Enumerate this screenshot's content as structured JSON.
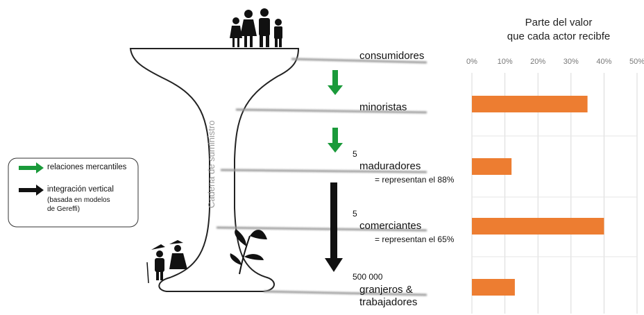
{
  "diagram": {
    "stem_label": "Cadena de suministro",
    "groups": [
      {
        "count": "5",
        "note": "= representan el 88%"
      },
      {
        "count": "5",
        "note": "= representan el 65%"
      },
      {
        "count": "500 000"
      }
    ],
    "legend": {
      "trade": "relaciones mercantiles",
      "vertical": "integración vertical",
      "vertical_note": [
        "(basada en modelos",
        "de Gereffi)"
      ]
    }
  },
  "chart_data": {
    "type": "bar",
    "orientation": "horizontal",
    "title": [
      "Parte del valor",
      "que cada actor recibfe"
    ],
    "categories": [
      "consumidores",
      "minoristas",
      "maduradores",
      "comerciantes",
      "granjeros &\ntrabajadores"
    ],
    "values": [
      null,
      35,
      12,
      40,
      13
    ],
    "color": "#ed7d31",
    "xlim": [
      0,
      50
    ],
    "xticks": [
      {
        "value": 0,
        "label": "0%"
      },
      {
        "value": 10,
        "label": "10%"
      },
      {
        "value": 20,
        "label": "20%"
      },
      {
        "value": 30,
        "label": "30%"
      },
      {
        "value": 40,
        "label": "40%"
      },
      {
        "value": 50,
        "label": "50%"
      }
    ],
    "grid": true
  }
}
